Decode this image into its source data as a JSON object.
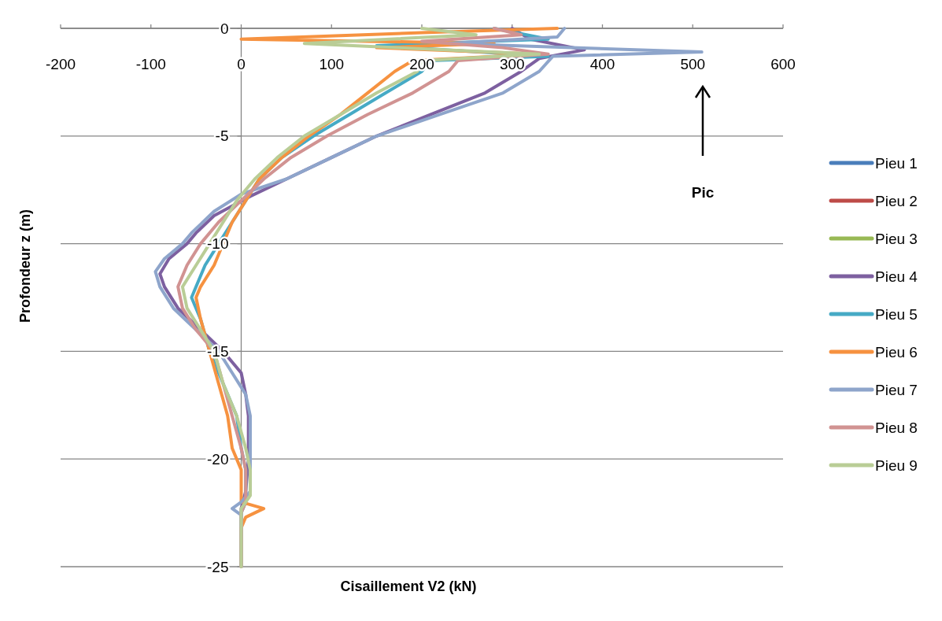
{
  "chart_data": {
    "type": "line",
    "xlabel": "Cisaillement V2 (kN)",
    "ylabel": "Profondeur z (m)",
    "xlim": [
      -200,
      600
    ],
    "xticks": [
      -200,
      -100,
      0,
      100,
      200,
      300,
      400,
      500,
      600
    ],
    "ylim": [
      -25,
      0
    ],
    "yticks": [
      0,
      -5,
      -10,
      -15,
      -20,
      -25
    ],
    "grid": "y",
    "legend": "right",
    "line_style": "solid",
    "marker": "none",
    "annotations": [
      "Pic"
    ],
    "series": [
      {
        "name": "Pieu 1",
        "color": "#4a7ebb",
        "x": [
          null
        ],
        "values": [
          null
        ]
      },
      {
        "name": "Pieu 2",
        "color": "#be4b48",
        "x": [
          null
        ],
        "values": [
          null
        ]
      },
      {
        "name": "Pieu 3",
        "color": "#98b954",
        "x": [
          null
        ],
        "values": [
          null
        ]
      },
      {
        "name": "Pieu 4",
        "color": "#7d60a0",
        "x": [
          300,
          320,
          380,
          330,
          310,
          270,
          210,
          150,
          100,
          50,
          10,
          -30,
          -50,
          -60,
          -80,
          -90,
          -85,
          -70,
          -45,
          -20,
          0,
          5,
          8,
          8,
          8,
          5,
          0,
          0
        ],
        "values": [
          0,
          -0.5,
          -1,
          -1.4,
          -2,
          -3,
          -4,
          -5,
          -6,
          -7,
          -7.8,
          -8.7,
          -9.5,
          -10,
          -10.7,
          -11.4,
          -12,
          -13,
          -14,
          -15,
          -16,
          -17,
          -18,
          -19,
          -20,
          -21.5,
          -22.3,
          -25
        ]
      },
      {
        "name": "Pieu 5",
        "color": "#46aac5",
        "x": [
          280,
          340,
          150,
          340,
          210,
          200,
          160,
          120,
          80,
          45,
          20,
          5,
          -10,
          -25,
          -40,
          -50,
          -55,
          -45,
          -35,
          -25,
          -15,
          -5,
          0,
          5,
          5,
          0,
          0
        ],
        "values": [
          0,
          -0.5,
          -0.8,
          -1.3,
          -1.5,
          -2,
          -3,
          -4,
          -5,
          -6,
          -7,
          -8,
          -9,
          -10,
          -11,
          -12,
          -12.5,
          -13.5,
          -15,
          -16,
          -17,
          -18,
          -19.5,
          -20.5,
          -22,
          -22.5,
          -25
        ]
      },
      {
        "name": "Pieu 6",
        "color": "#f69240",
        "x": [
          350,
          200,
          0,
          280,
          150,
          330,
          190,
          170,
          140,
          110,
          75,
          45,
          20,
          5,
          -10,
          -20,
          -30,
          -45,
          -50,
          -45,
          -35,
          -25,
          -15,
          -10,
          0,
          0,
          25,
          5,
          0,
          0
        ],
        "values": [
          0,
          -0.2,
          -0.5,
          -0.7,
          -0.9,
          -1.2,
          -1.5,
          -2,
          -3,
          -4,
          -5,
          -6,
          -7,
          -8,
          -9,
          -10,
          -11,
          -12,
          -12.5,
          -13.5,
          -15,
          -16.5,
          -18,
          -19.5,
          -20.5,
          -22,
          -22.3,
          -22.7,
          -23.2,
          -25
        ]
      },
      {
        "name": "Pieu 7",
        "color": "#8ea5cb",
        "x": [
          358,
          350,
          230,
          510,
          345,
          330,
          290,
          220,
          150,
          100,
          50,
          0,
          -30,
          -55,
          -65,
          -85,
          -95,
          -90,
          -75,
          -50,
          -25,
          -10,
          5,
          10,
          10,
          10,
          10,
          0,
          -10,
          0,
          0
        ],
        "values": [
          0,
          -0.4,
          -0.7,
          -1.1,
          -1.3,
          -2,
          -3,
          -4,
          -5,
          -6,
          -7,
          -7.7,
          -8.5,
          -9.5,
          -10,
          -10.7,
          -11.3,
          -12,
          -13,
          -14,
          -15,
          -16,
          -17,
          -18,
          -19,
          -20,
          -21.5,
          -22,
          -22.3,
          -22.6,
          -25
        ]
      },
      {
        "name": "Pieu 8",
        "color": "#d19392",
        "x": [
          280,
          310,
          200,
          290,
          340,
          240,
          230,
          190,
          140,
          95,
          55,
          25,
          0,
          -25,
          -45,
          -60,
          -70,
          -65,
          -50,
          -30,
          -20,
          -10,
          0,
          5,
          5,
          0,
          0
        ],
        "values": [
          0,
          -0.3,
          -0.6,
          -0.9,
          -1.2,
          -1.5,
          -2,
          -3,
          -4,
          -5,
          -6,
          -7,
          -8,
          -9,
          -10,
          -11,
          -12,
          -13,
          -14,
          -15,
          -16.5,
          -18,
          -19.5,
          -20.5,
          -22,
          -22.5,
          -25
        ]
      },
      {
        "name": "Pieu 9",
        "color": "#b9cd96",
        "x": [
          200,
          260,
          70,
          330,
          200,
          195,
          150,
          110,
          70,
          40,
          15,
          -5,
          -20,
          -35,
          -50,
          -65,
          -60,
          -45,
          -30,
          -20,
          -5,
          5,
          10,
          10,
          0,
          0
        ],
        "values": [
          0,
          -0.3,
          -0.7,
          -1.2,
          -1.5,
          -2,
          -3,
          -4,
          -5,
          -6,
          -7,
          -8,
          -9,
          -10,
          -11,
          -12,
          -13,
          -14,
          -15,
          -16.5,
          -18,
          -19.5,
          -20.5,
          -21.7,
          -22.3,
          -25
        ]
      }
    ]
  }
}
